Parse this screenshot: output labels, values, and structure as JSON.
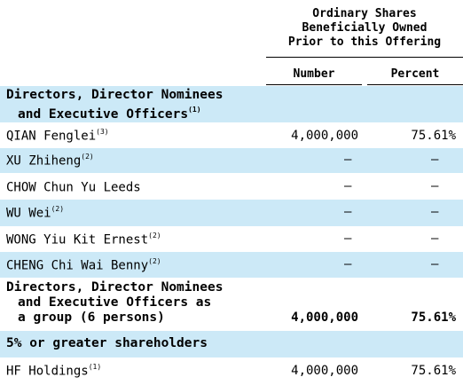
{
  "header": {
    "line1": "Ordinary Shares",
    "line2": "Beneficially Owned",
    "line3": "Prior to this Offering",
    "col_number": "Number",
    "col_percent": "Percent"
  },
  "sections": {
    "directors_line1": "Directors, Director Nominees",
    "directors_line2": "and Executive Officers",
    "directors_note": "(1)",
    "group_line1": "Directors, Director Nominees",
    "group_line2": "and Executive Officers as",
    "group_line3": "a group (6 persons)",
    "group_number": "4,000,000",
    "group_percent": "75.61%",
    "shareholders": "5% or greater shareholders"
  },
  "rows": [
    {
      "name": "QIAN Fenglei",
      "note": "(3)",
      "number": "4,000,000",
      "percent": "75.61%"
    },
    {
      "name": "XU Zhiheng",
      "note": "(2)",
      "number": "—",
      "percent": "—"
    },
    {
      "name": "CHOW Chun Yu Leeds",
      "note": "",
      "number": "—",
      "percent": "—"
    },
    {
      "name": "WU Wei",
      "note": "(2)",
      "number": "—",
      "percent": "—"
    },
    {
      "name": "WONG Yiu Kit Ernest",
      "note": "(2)",
      "number": "—",
      "percent": "—"
    },
    {
      "name": "CHENG Chi Wai Benny",
      "note": "(2)",
      "number": "—",
      "percent": "—"
    }
  ],
  "holders": [
    {
      "name": "HF Holdings",
      "note": "(1)",
      "number": "4,000,000",
      "percent": "75.61%"
    }
  ]
}
